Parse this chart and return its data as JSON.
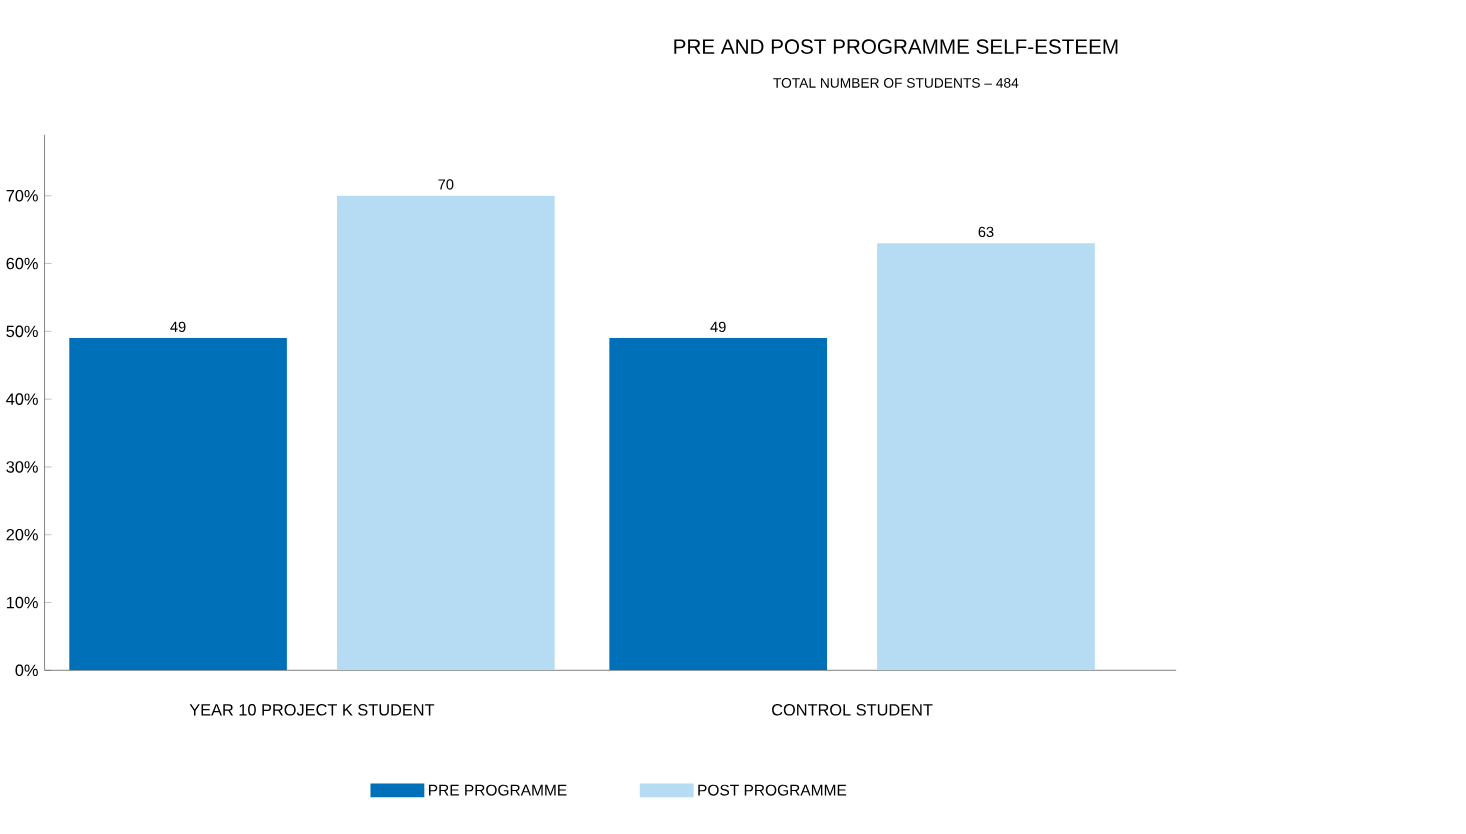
{
  "chart_data": {
    "type": "bar",
    "title": "PRE AND POST PROGRAMME SELF-ESTEEM",
    "subtitle": "TOTAL NUMBER OF STUDENTS – 484",
    "categories": [
      "YEAR 10 PROJECT K STUDENT",
      "CONTROL STUDENT"
    ],
    "series": [
      {
        "name": "PRE PROGRAMME",
        "color": "#0070b8",
        "values": [
          49,
          49
        ]
      },
      {
        "name": "POST PROGRAMME",
        "color": "#b5dcf3",
        "values": [
          70,
          63
        ]
      }
    ],
    "ylim": [
      0,
      79
    ],
    "yticks": [
      {
        "value": 0,
        "label": "0%"
      },
      {
        "value": 10,
        "label": "10%"
      },
      {
        "value": 20,
        "label": "20%"
      },
      {
        "value": 30,
        "label": "30%"
      },
      {
        "value": 40,
        "label": "40%"
      },
      {
        "value": 50,
        "label": "50%"
      },
      {
        "value": 60,
        "label": "60%"
      },
      {
        "value": 70,
        "label": "70%"
      }
    ],
    "data_labels": true,
    "grid": false,
    "legend": "bottom"
  }
}
